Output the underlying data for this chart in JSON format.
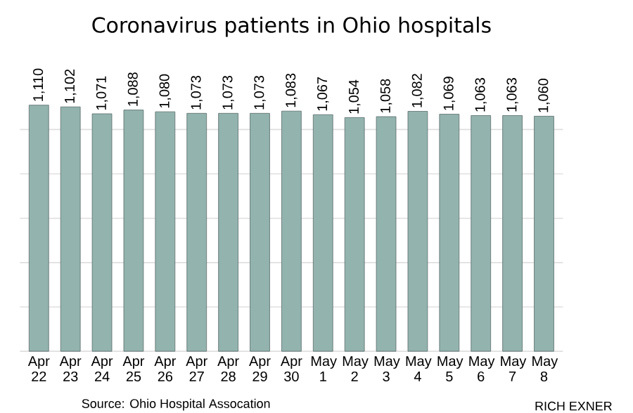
{
  "chart_data": {
    "type": "bar",
    "title": "Coronavirus patients in Ohio hospitals",
    "categories": [
      "Apr 22",
      "Apr 23",
      "Apr 24",
      "Apr 25",
      "Apr 26",
      "Apr 27",
      "Apr 28",
      "Apr 29",
      "Apr 30",
      "May 1",
      "May 2",
      "May 3",
      "May 4",
      "May 5",
      "May 6",
      "May 7",
      "May 8"
    ],
    "values": [
      1110,
      1102,
      1071,
      1088,
      1080,
      1073,
      1073,
      1073,
      1083,
      1067,
      1054,
      1058,
      1082,
      1069,
      1063,
      1063,
      1060
    ],
    "value_labels": [
      "1,110",
      "1,102",
      "1,071",
      "1,088",
      "1,080",
      "1,073",
      "1,073",
      "1,073",
      "1,083",
      "1,067",
      "1,054",
      "1,058",
      "1,082",
      "1,069",
      "1,063",
      "1,063",
      "1,060"
    ],
    "color": "#93b3ae",
    "yticks": [
      {
        "value": 0,
        "label": null
      },
      {
        "value": 200,
        "label": null
      },
      {
        "value": 400,
        "label": null
      },
      {
        "value": 600,
        "label": null
      },
      {
        "value": 800,
        "label": null
      },
      {
        "value": 1000,
        "label": null
      }
    ],
    "grid": "y",
    "tick_labels": "x",
    "annotations": [
      "Source: Ohio Hospital Assocation",
      "RICH EXNER"
    ]
  }
}
